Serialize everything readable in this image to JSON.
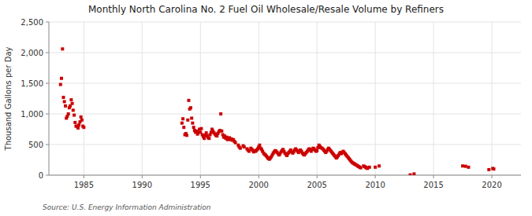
{
  "chart_data": {
    "type": "scatter",
    "title": "Monthly North Carolina No. 2 Fuel Oil Wholesale/Resale Volume by Refiners",
    "ylabel": "Thousand Gallons per Day",
    "annotations": [
      "Source: U.S. Energy Information Administration"
    ],
    "color": "#cc0000",
    "marker": "square",
    "grid": true,
    "xlim": [
      1982.0,
      2022.5
    ],
    "xticks": [
      1985,
      1990,
      1995,
      2000,
      2005,
      2010,
      2015,
      2020
    ],
    "ylim": [
      0,
      2500
    ],
    "yticks": [
      0,
      500,
      {
        "value": 1000,
        "label": "1,000"
      },
      {
        "value": 1500,
        "label": "1,500"
      },
      {
        "value": 2000,
        "label": "2,000"
      },
      {
        "value": 2500,
        "label": "2,500"
      }
    ],
    "x": [
      1983.0,
      1983.08,
      1983.17,
      1983.25,
      1983.33,
      1983.42,
      1983.5,
      1983.58,
      1983.67,
      1983.75,
      1983.83,
      1983.92,
      1984.0,
      1984.08,
      1984.17,
      1984.25,
      1984.33,
      1984.42,
      1984.5,
      1984.58,
      1984.67,
      1984.75,
      1984.83,
      1984.92,
      1985.0,
      1993.42,
      1993.5,
      1993.58,
      1993.67,
      1993.75,
      1993.83,
      1993.92,
      1994.0,
      1994.08,
      1994.17,
      1994.25,
      1994.33,
      1994.42,
      1994.5,
      1994.58,
      1994.67,
      1994.75,
      1994.83,
      1994.92,
      1995.0,
      1995.08,
      1995.17,
      1995.25,
      1995.33,
      1995.42,
      1995.5,
      1995.58,
      1995.67,
      1995.75,
      1995.83,
      1995.92,
      1996.0,
      1996.08,
      1996.17,
      1996.25,
      1996.33,
      1996.42,
      1996.5,
      1996.58,
      1996.67,
      1996.75,
      1996.83,
      1996.92,
      1997.0,
      1997.08,
      1997.17,
      1997.25,
      1997.33,
      1997.42,
      1997.5,
      1997.58,
      1997.67,
      1997.75,
      1997.83,
      1997.92,
      1998.0,
      1998.25,
      1998.33,
      1998.42,
      1998.67,
      1998.75,
      1999.0,
      1999.08,
      1999.17,
      1999.33,
      1999.42,
      1999.5,
      1999.58,
      1999.67,
      1999.75,
      1999.83,
      1999.92,
      2000.0,
      2000.08,
      2000.17,
      2000.25,
      2000.33,
      2000.42,
      2000.5,
      2000.58,
      2000.67,
      2000.75,
      2000.83,
      2000.92,
      2001.0,
      2001.08,
      2001.17,
      2001.25,
      2001.33,
      2001.42,
      2001.5,
      2001.58,
      2001.67,
      2001.75,
      2001.83,
      2001.92,
      2002.0,
      2002.08,
      2002.17,
      2002.25,
      2002.33,
      2002.42,
      2002.5,
      2002.58,
      2002.67,
      2002.75,
      2002.83,
      2002.92,
      2003.0,
      2003.08,
      2003.17,
      2003.25,
      2003.33,
      2003.42,
      2003.5,
      2003.58,
      2003.67,
      2003.75,
      2003.83,
      2003.92,
      2004.0,
      2004.08,
      2004.17,
      2004.25,
      2004.33,
      2004.42,
      2004.5,
      2004.58,
      2004.67,
      2004.75,
      2004.83,
      2004.92,
      2005.0,
      2005.08,
      2005.17,
      2005.25,
      2005.33,
      2005.42,
      2005.5,
      2005.58,
      2005.67,
      2005.75,
      2005.83,
      2005.92,
      2006.0,
      2006.08,
      2006.17,
      2006.25,
      2006.33,
      2006.42,
      2006.5,
      2006.58,
      2006.67,
      2006.75,
      2006.83,
      2006.92,
      2007.0,
      2007.08,
      2007.17,
      2007.25,
      2007.33,
      2007.42,
      2007.5,
      2007.58,
      2007.67,
      2007.75,
      2007.83,
      2007.92,
      2008.0,
      2008.08,
      2008.17,
      2008.25,
      2008.33,
      2008.42,
      2008.5,
      2008.58,
      2008.67,
      2008.75,
      2009.0,
      2009.08,
      2009.17,
      2009.25,
      2009.33,
      2009.5,
      2010.0,
      2010.33,
      2013.0,
      2013.33,
      2017.5,
      2017.75,
      2018.0,
      2019.75,
      2020.08,
      2020.17
    ],
    "values": [
      1480,
      1580,
      2060,
      1270,
      1200,
      1130,
      930,
      960,
      1000,
      1100,
      1130,
      1230,
      1170,
      1060,
      980,
      860,
      800,
      800,
      770,
      820,
      870,
      950,
      900,
      800,
      780,
      850,
      920,
      780,
      660,
      680,
      650,
      900,
      1220,
      1080,
      1100,
      930,
      850,
      780,
      730,
      700,
      720,
      670,
      700,
      750,
      700,
      760,
      660,
      630,
      600,
      650,
      690,
      640,
      610,
      600,
      660,
      700,
      750,
      720,
      690,
      670,
      650,
      640,
      680,
      710,
      730,
      1000,
      720,
      660,
      620,
      640,
      600,
      620,
      580,
      600,
      610,
      580,
      590,
      570,
      580,
      550,
      530,
      490,
      460,
      440,
      480,
      460,
      430,
      410,
      390,
      440,
      420,
      400,
      380,
      400,
      390,
      410,
      430,
      460,
      490,
      440,
      420,
      390,
      360,
      340,
      330,
      310,
      290,
      270,
      260,
      280,
      300,
      330,
      360,
      380,
      400,
      390,
      370,
      350,
      330,
      350,
      380,
      400,
      420,
      390,
      360,
      340,
      320,
      350,
      370,
      390,
      410,
      380,
      360,
      380,
      410,
      430,
      410,
      390,
      370,
      390,
      410,
      390,
      360,
      340,
      330,
      350,
      370,
      390,
      410,
      430,
      410,
      390,
      420,
      440,
      430,
      410,
      390,
      400,
      450,
      490,
      470,
      450,
      440,
      430,
      410,
      390,
      370,
      390,
      420,
      440,
      420,
      400,
      380,
      360,
      340,
      320,
      300,
      280,
      300,
      320,
      350,
      370,
      350,
      370,
      390,
      370,
      350,
      330,
      310,
      290,
      270,
      250,
      230,
      210,
      200,
      190,
      180,
      170,
      160,
      150,
      140,
      130,
      120,
      150,
      140,
      130,
      120,
      110,
      130,
      130,
      150,
      5,
      20,
      150,
      145,
      130,
      90,
      110,
      100
    ]
  }
}
